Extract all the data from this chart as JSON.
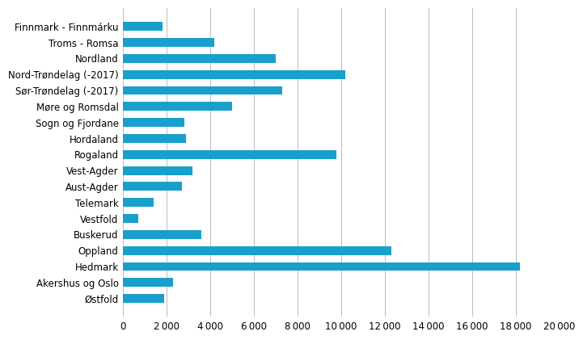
{
  "categories": [
    "Finnmark - Finnmárku",
    "Troms - Romsa",
    "Nordland",
    "Nord-Trøndelag (-2017)",
    "Sør-Trøndelag (-2017)",
    "Møre og Romsdal",
    "Sogn og Fjordane",
    "Hordaland",
    "Rogaland",
    "Vest-Agder",
    "Aust-Agder",
    "Telemark",
    "Vestfold",
    "Buskerud",
    "Oppland",
    "Hedmark",
    "Akershus og Oslo",
    "Østfold"
  ],
  "values": [
    1800,
    4200,
    7000,
    10200,
    7300,
    5000,
    2800,
    2900,
    9800,
    3200,
    2700,
    1400,
    700,
    3600,
    12300,
    18200,
    2300,
    1900
  ],
  "bar_color": "#18a0cb",
  "background_color": "#ffffff",
  "xlim": [
    0,
    20000
  ],
  "xticks": [
    0,
    2000,
    4000,
    6000,
    8000,
    10000,
    12000,
    14000,
    16000,
    18000,
    20000
  ],
  "grid_color": "#bbbbbb",
  "bar_height": 0.55,
  "tick_fontsize": 8.5
}
